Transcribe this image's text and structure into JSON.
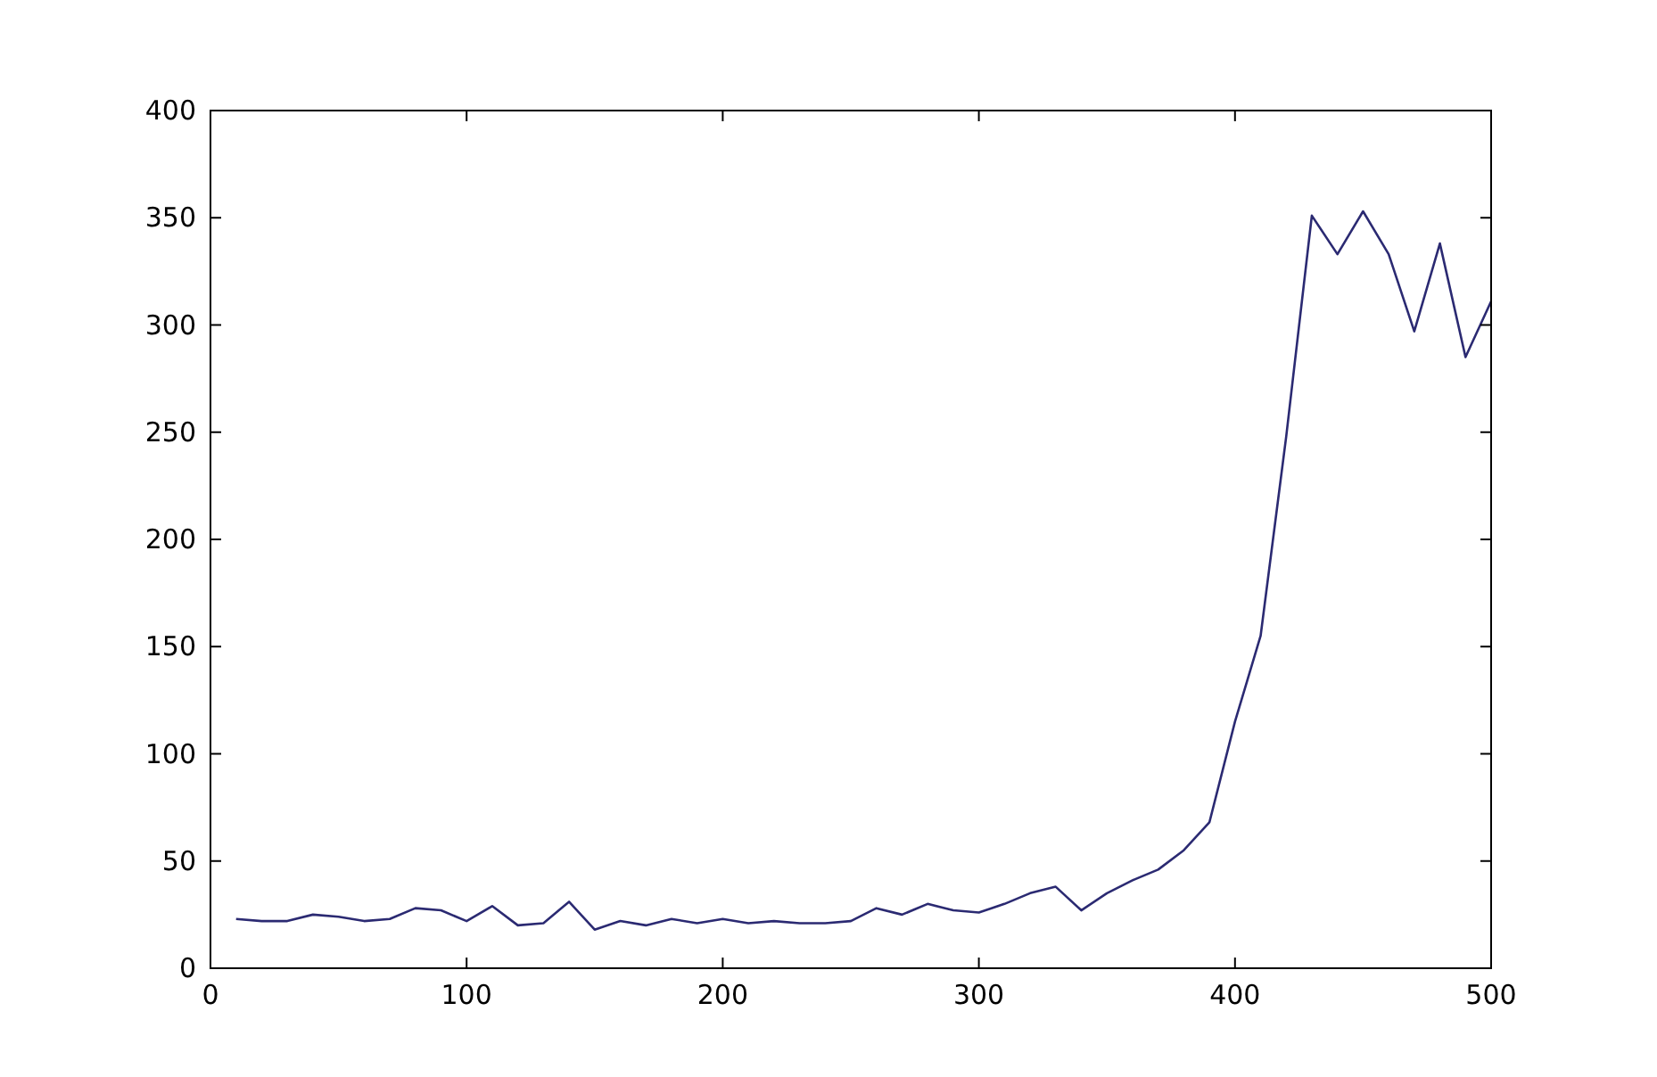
{
  "chart_data": {
    "type": "line",
    "x": [
      10,
      20,
      30,
      40,
      50,
      60,
      70,
      80,
      90,
      100,
      110,
      120,
      130,
      140,
      150,
      160,
      170,
      180,
      190,
      200,
      210,
      220,
      230,
      240,
      250,
      260,
      270,
      280,
      290,
      300,
      310,
      320,
      330,
      340,
      350,
      360,
      370,
      380,
      390,
      400,
      410,
      420,
      430,
      440,
      450,
      460,
      470,
      480,
      490,
      500
    ],
    "series": [
      {
        "color": "#2b2a72",
        "values": [
          23,
          22,
          22,
          25,
          24,
          22,
          23,
          28,
          27,
          22,
          29,
          20,
          21,
          31,
          18,
          22,
          20,
          23,
          21,
          23,
          21,
          22,
          21,
          21,
          22,
          28,
          25,
          30,
          27,
          26,
          30,
          35,
          38,
          27,
          35,
          41,
          46,
          55,
          68,
          115,
          155,
          248,
          351,
          333,
          353,
          333,
          297,
          338,
          285,
          311
        ]
      }
    ],
    "xlim": [
      0,
      500
    ],
    "xticks": [
      0,
      100,
      200,
      300,
      400,
      500
    ],
    "ylim": [
      0,
      400
    ],
    "yticks": [
      0,
      50,
      100,
      150,
      200,
      250,
      300,
      350,
      400
    ],
    "grid": false,
    "marker": "none",
    "line_style": "solid"
  }
}
